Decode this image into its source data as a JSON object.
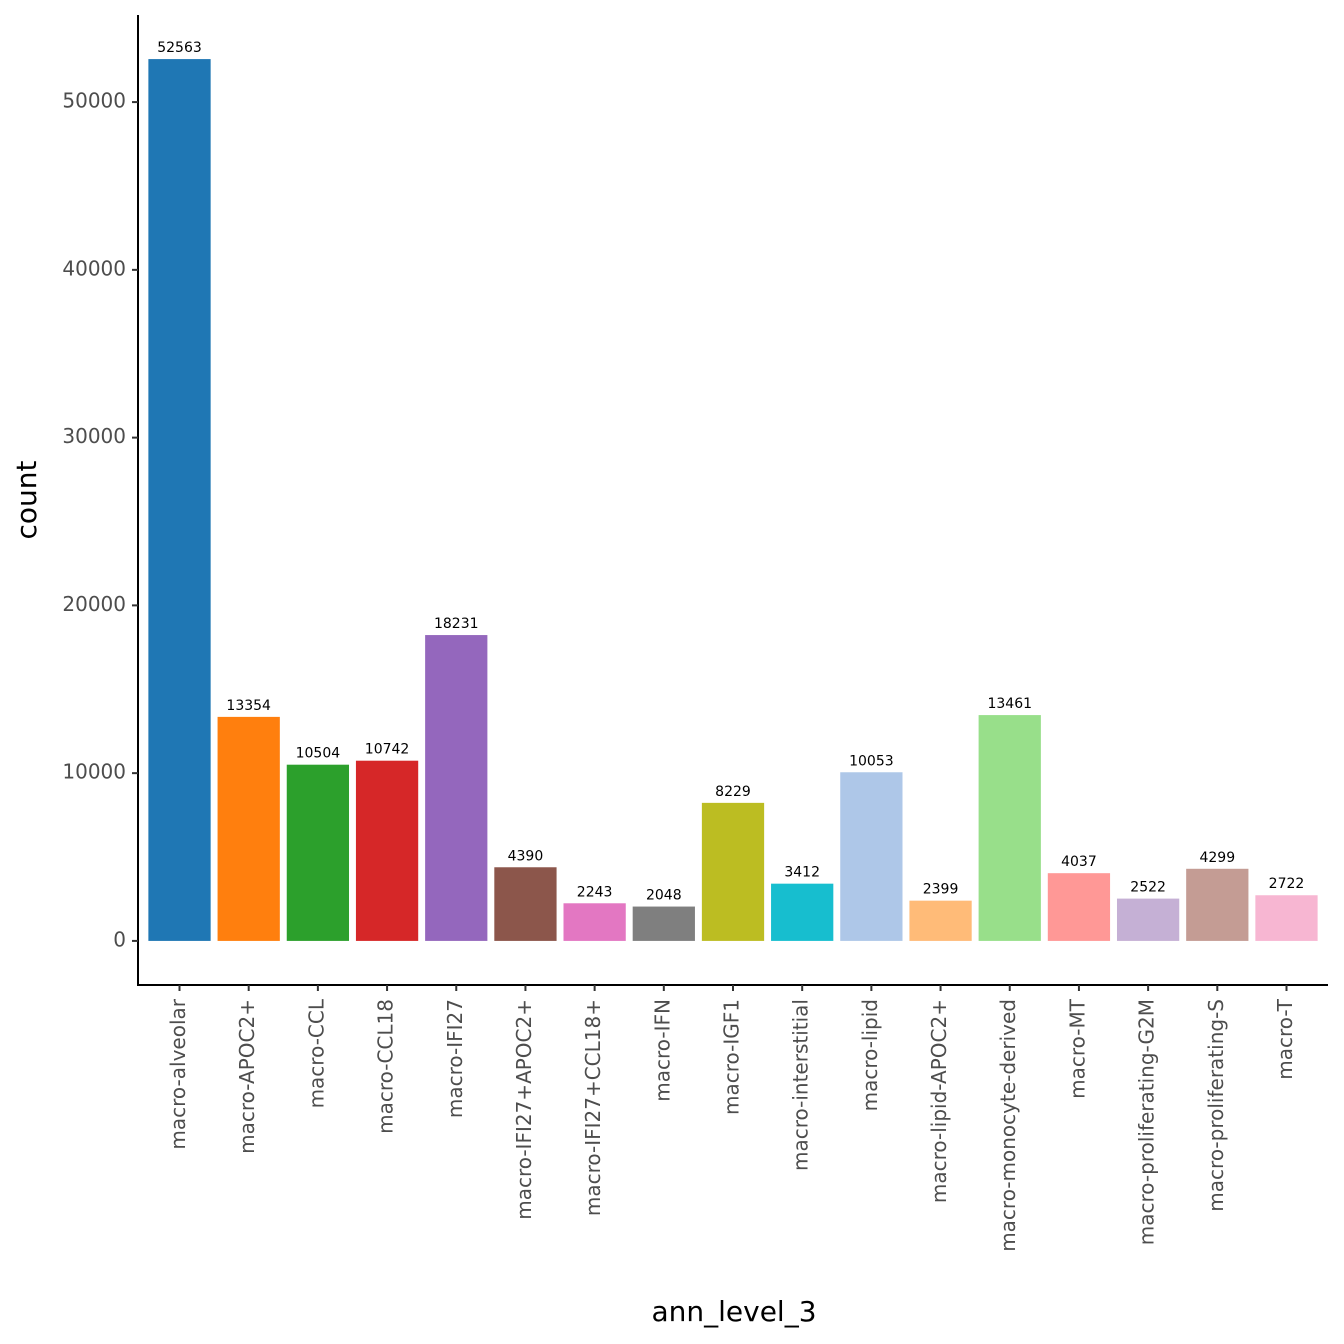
{
  "chart_data": {
    "type": "bar",
    "x_label": "ann_level_3",
    "y_label": "count",
    "categories": [
      "macro-alveolar",
      "macro-APOC2+",
      "macro-CCL",
      "macro-CCL18",
      "macro-IFI27",
      "macro-IFI27+APOC2+",
      "macro-IFI27+CCL18+",
      "macro-IFN",
      "macro-IGF1",
      "macro-interstitial",
      "macro-lipid",
      "macro-lipid-APOC2+",
      "macro-monocyte-derived",
      "macro-MT",
      "macro-proliferating-G2M",
      "macro-proliferating-S",
      "macro-T"
    ],
    "values": [
      52563,
      13354,
      10504,
      10742,
      18231,
      4390,
      2243,
      2048,
      8229,
      3412,
      10053,
      2399,
      13461,
      4037,
      2522,
      4299,
      2722
    ],
    "colors": [
      "#1f77b4",
      "#ff7f0e",
      "#2ca02c",
      "#d62728",
      "#9467bd",
      "#8c564b",
      "#e377c2",
      "#7f7f7f",
      "#bcbd22",
      "#17becf",
      "#aec7e8",
      "#ffbb78",
      "#98df8a",
      "#ff9896",
      "#c5b0d5",
      "#c49c94",
      "#f7b6d2"
    ],
    "ylim": [
      -2628,
      55191
    ],
    "yticks": [
      0,
      10000,
      20000,
      30000,
      40000,
      50000
    ],
    "grid": false
  }
}
